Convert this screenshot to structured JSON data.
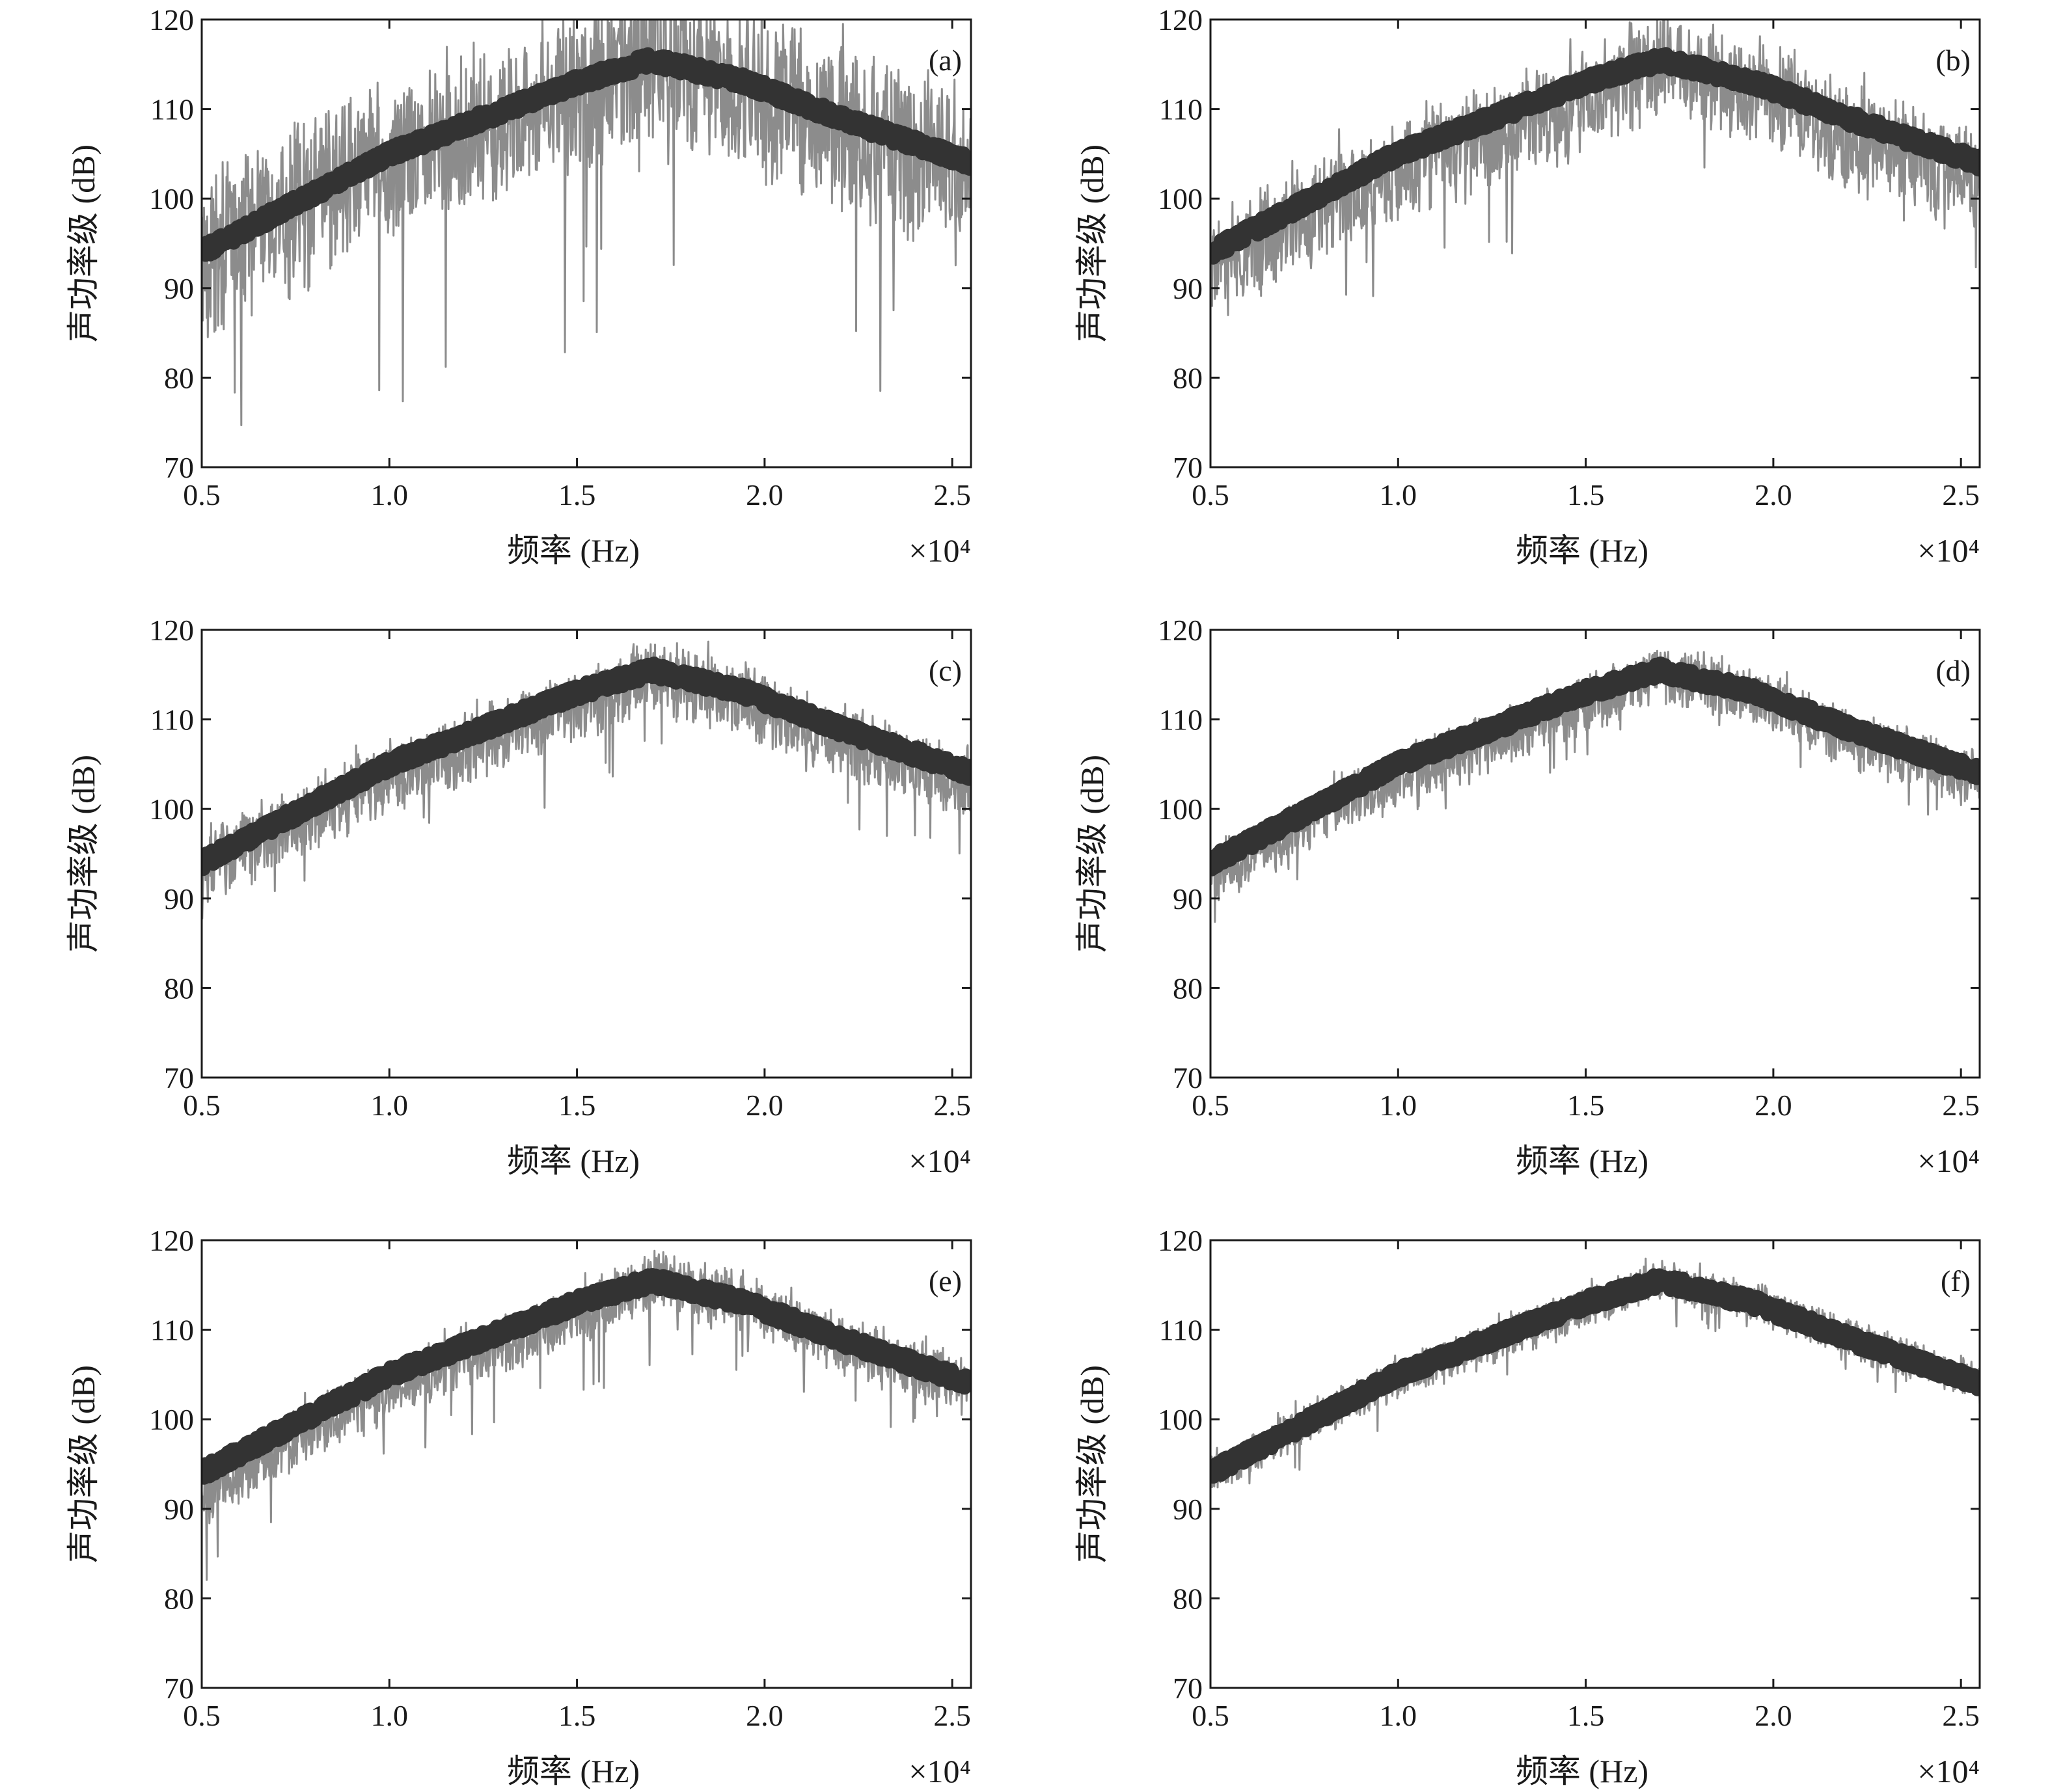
{
  "colors": {
    "measured_series": "#8c8c8c",
    "model_series": "#333333",
    "axes": "#1a1a1a",
    "background": "#ffffff"
  },
  "chart_data": [
    {
      "type": "line",
      "panel_label": "(a)",
      "xlabel": "频率 (Hz)",
      "ylabel": "声功率级 (dB)",
      "x_multiplier": "×10⁴",
      "xlim": [
        0.5,
        2.55
      ],
      "ylim": [
        70,
        120
      ],
      "xticks": [
        "0.5",
        "1.0",
        "1.5",
        "2.0",
        "2.5"
      ],
      "yticks": [
        "70",
        "80",
        "90",
        "100",
        "110",
        "120"
      ],
      "grid": false,
      "x": [
        0.5,
        0.75,
        1.0,
        1.25,
        1.5,
        1.7,
        1.95,
        2.2,
        2.55
      ],
      "series": [
        {
          "role": "noisy",
          "values": [
            93,
            99,
            104,
            108,
            112,
            116,
            112,
            108,
            103
          ],
          "noise_spread_db": 8,
          "dropout_depth_db": 30
        },
        {
          "role": "smooth",
          "values": [
            94,
            99.5,
            105,
            109,
            113,
            115.5,
            113,
            109,
            104
          ]
        }
      ]
    },
    {
      "type": "line",
      "panel_label": "(b)",
      "xlabel": "频率 (Hz)",
      "ylabel": "声功率级 (dB)",
      "x_multiplier": "×10⁴",
      "xlim": [
        0.5,
        2.55
      ],
      "ylim": [
        70,
        120
      ],
      "xticks": [
        "0.5",
        "1.0",
        "1.5",
        "2.0",
        "2.5"
      ],
      "yticks": [
        "70",
        "80",
        "90",
        "100",
        "110",
        "120"
      ],
      "grid": false,
      "x": [
        0.5,
        0.75,
        1.0,
        1.25,
        1.5,
        1.7,
        1.95,
        2.2,
        2.55
      ],
      "series": [
        {
          "role": "noisy",
          "values": [
            92,
            98,
            103,
            107,
            111,
            115,
            112,
            107,
            102
          ],
          "noise_spread_db": 5,
          "dropout_depth_db": 14
        },
        {
          "role": "smooth",
          "values": [
            94,
            99.5,
            105,
            109,
            113,
            115.5,
            113,
            109,
            104
          ]
        }
      ]
    },
    {
      "type": "line",
      "panel_label": "(c)",
      "xlabel": "频率 (Hz)",
      "ylabel": "声功率级 (dB)",
      "x_multiplier": "×10⁴",
      "xlim": [
        0.5,
        2.55
      ],
      "ylim": [
        70,
        120
      ],
      "xticks": [
        "0.5",
        "1.0",
        "1.5",
        "2.0",
        "2.5"
      ],
      "yticks": [
        "70",
        "80",
        "90",
        "100",
        "110",
        "120"
      ],
      "grid": false,
      "x": [
        0.5,
        0.75,
        1.0,
        1.25,
        1.5,
        1.7,
        1.95,
        2.2,
        2.55
      ],
      "series": [
        {
          "role": "noisy",
          "values": [
            93,
            98.5,
            103.5,
            107.5,
            111.5,
            115,
            112,
            107.5,
            102.5
          ],
          "noise_spread_db": 3.6,
          "dropout_depth_db": 10
        },
        {
          "role": "smooth",
          "values": [
            94,
            99.5,
            105,
            109,
            113,
            115.5,
            113,
            109,
            104
          ]
        }
      ]
    },
    {
      "type": "line",
      "panel_label": "(d)",
      "xlabel": "频率 (Hz)",
      "ylabel": "声功率级 (dB)",
      "x_multiplier": "×10⁴",
      "xlim": [
        0.5,
        2.55
      ],
      "ylim": [
        70,
        120
      ],
      "xticks": [
        "0.5",
        "1.0",
        "1.5",
        "2.0",
        "2.5"
      ],
      "yticks": [
        "70",
        "80",
        "90",
        "100",
        "110",
        "120"
      ],
      "grid": false,
      "x": [
        0.5,
        0.75,
        1.0,
        1.25,
        1.5,
        1.7,
        1.95,
        2.2,
        2.55
      ],
      "series": [
        {
          "role": "noisy",
          "values": [
            92.5,
            98,
            103.5,
            107.5,
            111.5,
            115,
            112.5,
            108,
            103
          ],
          "noise_spread_db": 2.8,
          "dropout_depth_db": 6
        },
        {
          "role": "smooth",
          "values": [
            94,
            99.5,
            105,
            109,
            113,
            115.5,
            113,
            109,
            104
          ]
        }
      ]
    },
    {
      "type": "line",
      "panel_label": "(e)",
      "xlabel": "频率 (Hz)",
      "ylabel": "声功率级 (dB)",
      "x_multiplier": "×10⁴",
      "xlim": [
        0.5,
        2.55
      ],
      "ylim": [
        70,
        120
      ],
      "xticks": [
        "0.5",
        "1.0",
        "1.5",
        "2.0",
        "2.5"
      ],
      "yticks": [
        "70",
        "80",
        "90",
        "100",
        "110",
        "120"
      ],
      "grid": false,
      "x": [
        0.5,
        0.75,
        1.0,
        1.25,
        1.5,
        1.7,
        1.95,
        2.2,
        2.55
      ],
      "series": [
        {
          "role": "noisy",
          "values": [
            91,
            98,
            103.5,
            107.5,
            111.5,
            115.5,
            113,
            108.5,
            103.5
          ],
          "noise_spread_db": 2.8,
          "dropout_depth_db": 10
        },
        {
          "role": "smooth",
          "values": [
            94,
            99.5,
            105,
            109,
            113,
            115.5,
            113,
            109,
            104
          ]
        }
      ]
    },
    {
      "type": "line",
      "panel_label": "(f)",
      "xlabel": "频率 (Hz)",
      "ylabel": "声功率级 (dB)",
      "x_multiplier": "×10⁴",
      "xlim": [
        0.5,
        2.55
      ],
      "ylim": [
        70,
        120
      ],
      "xticks": [
        "0.5",
        "1.0",
        "1.5",
        "2.0",
        "2.5"
      ],
      "yticks": [
        "70",
        "80",
        "90",
        "100",
        "110",
        "120"
      ],
      "grid": false,
      "x": [
        0.5,
        0.75,
        1.0,
        1.25,
        1.5,
        1.7,
        1.95,
        2.2,
        2.55
      ],
      "series": [
        {
          "role": "noisy",
          "values": [
            93.5,
            99.5,
            104.5,
            108.5,
            112.5,
            115.5,
            113,
            109,
            104
          ],
          "noise_spread_db": 2.0,
          "dropout_depth_db": 5
        },
        {
          "role": "smooth",
          "values": [
            94,
            99.5,
            105,
            109,
            113,
            115.5,
            113,
            109,
            104
          ]
        }
      ]
    }
  ]
}
